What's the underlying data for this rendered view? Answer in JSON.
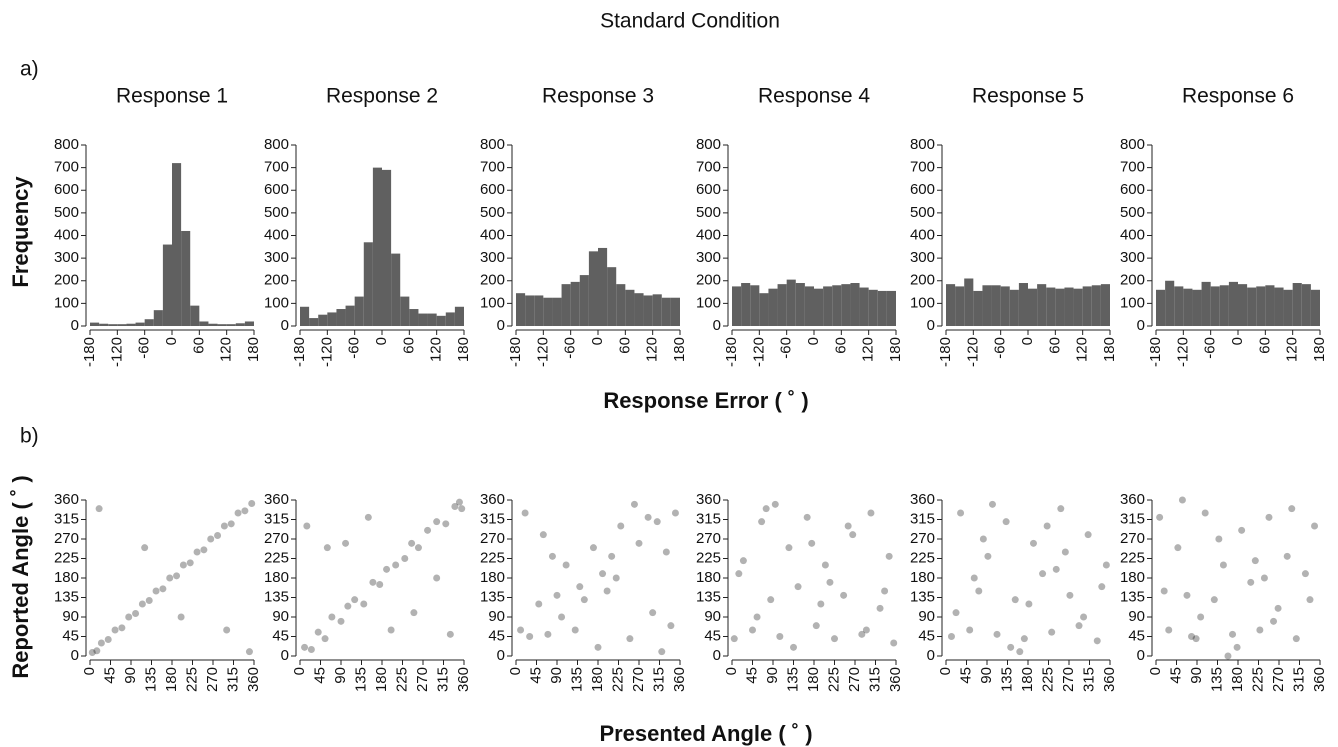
{
  "title": "Standard Condition",
  "panels": [
    {
      "label": "a)",
      "ylabel": "Frequency",
      "xlabel": "Response Error ( ˚ )"
    },
    {
      "label": "b)",
      "ylabel": "Reported Angle ( ˚ )",
      "xlabel": "Presented Angle ( ˚ )"
    }
  ],
  "chart_data": [
    {
      "type": "histogram",
      "title": "Response 1",
      "color": "#606060",
      "bins": [
        -180,
        -160,
        -140,
        -120,
        -100,
        -80,
        -60,
        -40,
        -20,
        0,
        20,
        40,
        60,
        80,
        100,
        120,
        140,
        160,
        180
      ],
      "values": [
        15,
        10,
        8,
        8,
        10,
        15,
        30,
        70,
        360,
        720,
        420,
        90,
        20,
        10,
        8,
        8,
        12,
        20
      ],
      "xlim": [
        -180,
        180
      ],
      "xticks": [
        -180,
        -120,
        -60,
        0,
        60,
        120,
        180
      ],
      "ylim": [
        0,
        800
      ],
      "yticks": [
        0,
        100,
        200,
        300,
        400,
        500,
        600,
        700,
        800
      ]
    },
    {
      "type": "histogram",
      "title": "Response 2",
      "color": "#606060",
      "bins": [
        -180,
        -160,
        -140,
        -120,
        -100,
        -80,
        -60,
        -40,
        -20,
        0,
        20,
        40,
        60,
        80,
        100,
        120,
        140,
        160,
        180
      ],
      "values": [
        85,
        35,
        50,
        60,
        75,
        90,
        130,
        370,
        700,
        690,
        320,
        130,
        75,
        55,
        55,
        45,
        60,
        85
      ],
      "xlim": [
        -180,
        180
      ],
      "xticks": [
        -180,
        -120,
        -60,
        0,
        60,
        120,
        180
      ],
      "ylim": [
        0,
        800
      ],
      "yticks": [
        0,
        100,
        200,
        300,
        400,
        500,
        600,
        700,
        800
      ]
    },
    {
      "type": "histogram",
      "title": "Response 3",
      "color": "#606060",
      "bins": [
        -180,
        -160,
        -140,
        -120,
        -100,
        -80,
        -60,
        -40,
        -20,
        0,
        20,
        40,
        60,
        80,
        100,
        120,
        140,
        160,
        180
      ],
      "values": [
        145,
        135,
        135,
        125,
        125,
        185,
        195,
        225,
        330,
        345,
        260,
        185,
        160,
        145,
        135,
        140,
        125,
        125
      ],
      "xlim": [
        -180,
        180
      ],
      "xticks": [
        -180,
        -120,
        -60,
        0,
        60,
        120,
        180
      ],
      "ylim": [
        0,
        800
      ],
      "yticks": [
        0,
        100,
        200,
        300,
        400,
        500,
        600,
        700,
        800
      ]
    },
    {
      "type": "histogram",
      "title": "Response 4",
      "color": "#606060",
      "bins": [
        -180,
        -160,
        -140,
        -120,
        -100,
        -80,
        -60,
        -40,
        -20,
        0,
        20,
        40,
        60,
        80,
        100,
        120,
        140,
        160,
        180
      ],
      "values": [
        175,
        190,
        180,
        145,
        165,
        185,
        205,
        190,
        175,
        165,
        175,
        180,
        185,
        190,
        170,
        160,
        155,
        155
      ],
      "xlim": [
        -180,
        180
      ],
      "xticks": [
        -180,
        -120,
        -60,
        0,
        60,
        120,
        180
      ],
      "ylim": [
        0,
        800
      ],
      "yticks": [
        0,
        100,
        200,
        300,
        400,
        500,
        600,
        700,
        800
      ]
    },
    {
      "type": "histogram",
      "title": "Response 5",
      "color": "#606060",
      "bins": [
        -180,
        -160,
        -140,
        -120,
        -100,
        -80,
        -60,
        -40,
        -20,
        0,
        20,
        40,
        60,
        80,
        100,
        120,
        140,
        160,
        180
      ],
      "values": [
        185,
        175,
        210,
        155,
        180,
        180,
        175,
        160,
        190,
        165,
        185,
        170,
        165,
        170,
        165,
        175,
        180,
        185
      ],
      "xlim": [
        -180,
        180
      ],
      "xticks": [
        -180,
        -120,
        -60,
        0,
        60,
        120,
        180
      ],
      "ylim": [
        0,
        800
      ],
      "yticks": [
        0,
        100,
        200,
        300,
        400,
        500,
        600,
        700,
        800
      ]
    },
    {
      "type": "histogram",
      "title": "Response 6",
      "color": "#606060",
      "bins": [
        -180,
        -160,
        -140,
        -120,
        -100,
        -80,
        -60,
        -40,
        -20,
        0,
        20,
        40,
        60,
        80,
        100,
        120,
        140,
        160,
        180
      ],
      "values": [
        160,
        200,
        175,
        165,
        160,
        195,
        175,
        180,
        195,
        185,
        170,
        175,
        180,
        170,
        160,
        190,
        185,
        160
      ],
      "xlim": [
        -180,
        180
      ],
      "xticks": [
        -180,
        -120,
        -60,
        0,
        60,
        120,
        180
      ],
      "ylim": [
        0,
        800
      ],
      "yticks": [
        0,
        100,
        200,
        300,
        400,
        500,
        600,
        700,
        800
      ]
    },
    {
      "type": "scatter",
      "color": "#000000",
      "x": [
        5,
        15,
        25,
        40,
        55,
        70,
        85,
        100,
        115,
        130,
        145,
        160,
        175,
        190,
        205,
        220,
        235,
        250,
        265,
        280,
        295,
        310,
        325,
        340,
        355,
        20,
        120,
        300,
        200,
        350
      ],
      "y": [
        8,
        12,
        30,
        38,
        60,
        65,
        90,
        98,
        120,
        128,
        150,
        155,
        180,
        185,
        210,
        215,
        240,
        245,
        270,
        278,
        300,
        305,
        330,
        335,
        352,
        340,
        250,
        60,
        90,
        10
      ],
      "xlim": [
        0,
        360
      ],
      "xticks": [
        0,
        45,
        90,
        135,
        180,
        225,
        270,
        315,
        360
      ],
      "ylim": [
        0,
        360
      ],
      "yticks": [
        0,
        45,
        90,
        135,
        180,
        225,
        270,
        315,
        360
      ]
    },
    {
      "type": "scatter",
      "color": "#000000",
      "x": [
        10,
        25,
        40,
        55,
        70,
        90,
        105,
        120,
        140,
        160,
        175,
        190,
        210,
        230,
        245,
        260,
        280,
        300,
        320,
        340,
        355,
        15,
        60,
        150,
        200,
        250,
        300,
        330,
        100,
        350
      ],
      "y": [
        20,
        15,
        55,
        40,
        90,
        80,
        115,
        130,
        120,
        170,
        165,
        200,
        210,
        225,
        260,
        250,
        290,
        310,
        305,
        345,
        340,
        300,
        250,
        320,
        60,
        100,
        180,
        50,
        260,
        355
      ],
      "xlim": [
        0,
        360
      ],
      "xticks": [
        0,
        45,
        90,
        135,
        180,
        225,
        270,
        315,
        360
      ],
      "ylim": [
        0,
        360
      ],
      "yticks": [
        0,
        45,
        90,
        135,
        180,
        225,
        270,
        315,
        360
      ]
    },
    {
      "type": "scatter",
      "color": "#000000",
      "x": [
        10,
        30,
        50,
        70,
        90,
        110,
        130,
        150,
        170,
        190,
        210,
        230,
        250,
        270,
        290,
        310,
        330,
        350,
        20,
        60,
        100,
        140,
        180,
        220,
        260,
        300,
        340,
        80,
        200,
        320
      ],
      "y": [
        60,
        45,
        120,
        50,
        140,
        210,
        60,
        130,
        250,
        190,
        230,
        300,
        40,
        260,
        320,
        310,
        240,
        330,
        330,
        280,
        90,
        160,
        20,
        180,
        350,
        100,
        70,
        230,
        150,
        10
      ],
      "xlim": [
        0,
        360
      ],
      "xticks": [
        0,
        45,
        90,
        135,
        180,
        225,
        270,
        315,
        360
      ],
      "ylim": [
        0,
        360
      ],
      "yticks": [
        0,
        45,
        90,
        135,
        180,
        225,
        270,
        315,
        360
      ]
    },
    {
      "type": "scatter",
      "color": "#000000",
      "x": [
        5,
        25,
        45,
        65,
        85,
        105,
        125,
        145,
        165,
        185,
        205,
        225,
        245,
        265,
        285,
        305,
        325,
        345,
        15,
        55,
        95,
        135,
        175,
        215,
        255,
        295,
        335,
        75,
        195,
        355
      ],
      "y": [
        40,
        220,
        60,
        310,
        130,
        45,
        250,
        160,
        320,
        70,
        210,
        40,
        140,
        280,
        50,
        330,
        110,
        230,
        190,
        90,
        350,
        20,
        260,
        170,
        300,
        60,
        150,
        340,
        120,
        30
      ],
      "xlim": [
        0,
        360
      ],
      "xticks": [
        0,
        45,
        90,
        135,
        180,
        225,
        270,
        315,
        360
      ],
      "ylim": [
        0,
        360
      ],
      "yticks": [
        0,
        45,
        90,
        135,
        180,
        225,
        270,
        315,
        360
      ]
    },
    {
      "type": "scatter",
      "color": "#000000",
      "x": [
        12,
        32,
        52,
        72,
        92,
        112,
        132,
        152,
        172,
        192,
        212,
        232,
        252,
        272,
        292,
        312,
        332,
        352,
        22,
        62,
        102,
        142,
        182,
        222,
        262,
        302,
        342,
        82,
        162,
        242
      ],
      "y": [
        45,
        330,
        60,
        150,
        230,
        50,
        310,
        130,
        40,
        260,
        190,
        55,
        340,
        140,
        70,
        280,
        35,
        210,
        100,
        180,
        350,
        20,
        120,
        300,
        240,
        90,
        160,
        270,
        10,
        200
      ],
      "xlim": [
        0,
        360
      ],
      "xticks": [
        0,
        45,
        90,
        135,
        180,
        225,
        270,
        315,
        360
      ],
      "ylim": [
        0,
        360
      ],
      "yticks": [
        0,
        45,
        90,
        135,
        180,
        225,
        270,
        315,
        360
      ]
    },
    {
      "type": "scatter",
      "color": "#000000",
      "x": [
        8,
        28,
        48,
        68,
        88,
        108,
        128,
        148,
        168,
        188,
        208,
        228,
        248,
        268,
        288,
        308,
        328,
        348,
        18,
        58,
        98,
        138,
        178,
        218,
        258,
        298,
        338,
        78,
        158,
        238
      ],
      "y": [
        320,
        60,
        250,
        140,
        40,
        330,
        130,
        210,
        50,
        290,
        170,
        60,
        320,
        110,
        230,
        40,
        190,
        300,
        150,
        360,
        90,
        270,
        20,
        220,
        80,
        340,
        130,
        45,
        0,
        180
      ],
      "xlim": [
        0,
        360
      ],
      "xticks": [
        0,
        45,
        90,
        135,
        180,
        225,
        270,
        315,
        360
      ],
      "ylim": [
        0,
        360
      ],
      "yticks": [
        0,
        45,
        90,
        135,
        180,
        225,
        270,
        315,
        360
      ]
    }
  ]
}
